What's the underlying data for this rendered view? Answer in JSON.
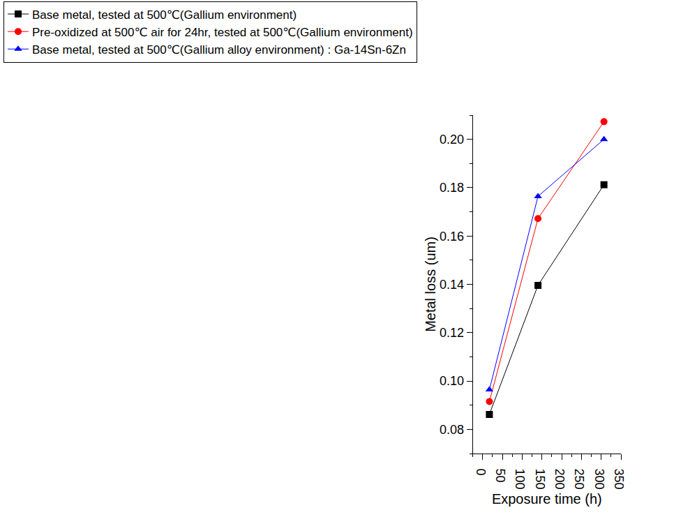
{
  "chart_data": {
    "type": "line",
    "x_label": "Exposure time (h)",
    "y_label": "Metal loss (um)",
    "series": [
      {
        "name": "Base metal, tested at 500℃(Gallium environment)",
        "color": "#000000",
        "marker": "square",
        "x": [
          17,
          140,
          307
        ],
        "values": [
          0.0862,
          0.1396,
          0.1812
        ]
      },
      {
        "name": "Pre-oxidized at 500℃ air for 24hr, tested at 500℃(Gallium environment)",
        "color": "#ff0000",
        "marker": "circle",
        "x": [
          17,
          140,
          307
        ],
        "values": [
          0.0915,
          0.1672,
          0.2073
        ]
      },
      {
        "name": "Base metal, tested at 500℃(Gallium alloy environment) : Ga-14Sn-6Zn",
        "color": "#0000ff",
        "marker": "triangle-up",
        "x": [
          17,
          140,
          307
        ],
        "values": [
          0.0964,
          0.1764,
          0.2
        ]
      }
    ],
    "xlim": [
      -25,
      350
    ],
    "xticks": [
      0,
      50,
      100,
      150,
      200,
      250,
      300,
      350
    ],
    "ylim": [
      0.07,
      0.21
    ],
    "yticks": [
      0.08,
      0.1,
      0.12,
      0.14,
      0.16,
      0.18,
      0.2
    ],
    "grid": false,
    "legend": "top left"
  }
}
